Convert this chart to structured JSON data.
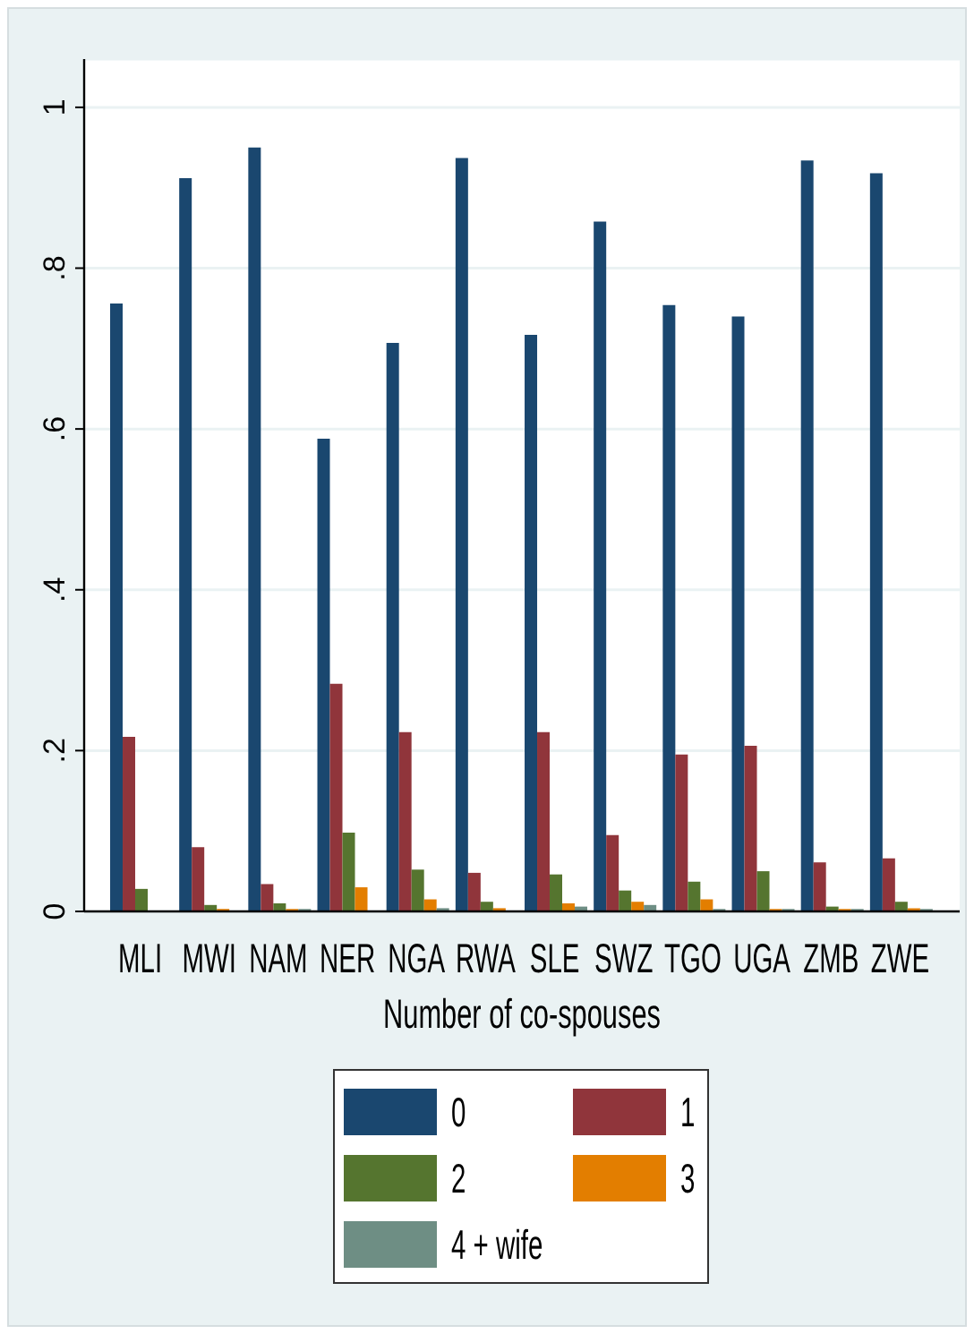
{
  "chart_data": {
    "type": "bar",
    "xlabel": "Number of co-spouses",
    "categories": [
      "MLI",
      "MWI",
      "NAM",
      "NER",
      "NGA",
      "RWA",
      "SLE",
      "SWZ",
      "TGO",
      "UGA",
      "ZMB",
      "ZWE"
    ],
    "series": [
      {
        "name": "0",
        "color": "#1a476f",
        "values": [
          0.756,
          0.912,
          0.95,
          0.588,
          0.707,
          0.937,
          0.717,
          0.858,
          0.754,
          0.74,
          0.934,
          0.918
        ]
      },
      {
        "name": "1",
        "color": "#90353b",
        "values": [
          0.217,
          0.08,
          0.034,
          0.283,
          0.223,
          0.048,
          0.223,
          0.095,
          0.195,
          0.206,
          0.061,
          0.066
        ]
      },
      {
        "name": "2",
        "color": "#55752f",
        "values": [
          0.028,
          0.008,
          0.01,
          0.098,
          0.052,
          0.012,
          0.046,
          0.026,
          0.037,
          0.05,
          0.006,
          0.012
        ]
      },
      {
        "name": "3",
        "color": "#e37e00",
        "values": [
          0,
          0.003,
          0.003,
          0.03,
          0.015,
          0.004,
          0.01,
          0.012,
          0.015,
          0.003,
          0.003,
          0.004
        ]
      },
      {
        "name": "4 + wife",
        "color": "#6e8e84",
        "values": [
          0,
          0,
          0.003,
          0,
          0.004,
          0,
          0.006,
          0.008,
          0.003,
          0.003,
          0.003,
          0.003
        ]
      }
    ],
    "ylim": [
      0,
      1.06
    ],
    "yticks": [
      0,
      {
        "value": 0.2,
        "label": ".2"
      },
      {
        "value": 0.4,
        "label": ".4"
      },
      {
        "value": 0.6,
        "label": ".6"
      },
      {
        "value": 0.8,
        "label": ".8"
      },
      1
    ],
    "grid": "y",
    "legend": "bottom"
  }
}
